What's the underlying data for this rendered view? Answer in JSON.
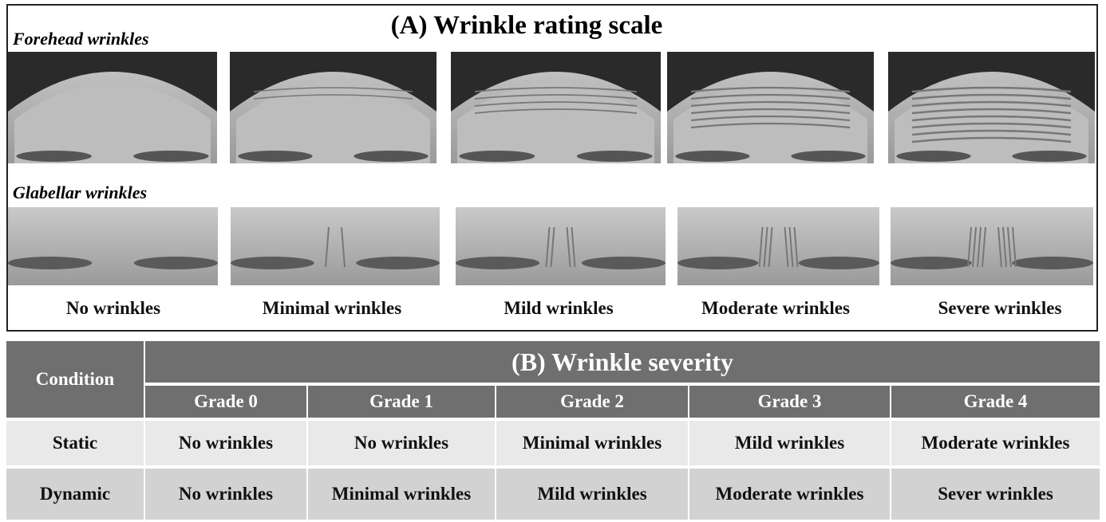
{
  "panel_a": {
    "title": "(A) Wrinkle rating scale",
    "rows": [
      "Forehead wrinkles",
      "Glabellar wrinkles"
    ],
    "grades": [
      "No wrinkles",
      "Minimal wrinkles",
      "Mild wrinkles",
      "Moderate wrinkles",
      "Severe wrinkles"
    ]
  },
  "panel_b": {
    "title": "(B) Wrinkle severity",
    "condition_header": "Condition",
    "grade_headers": [
      "Grade 0",
      "Grade 1",
      "Grade 2",
      "Grade 3",
      "Grade 4"
    ],
    "rows": [
      {
        "condition": "Static",
        "cells": [
          "No wrinkles",
          "No wrinkles",
          "Minimal wrinkles",
          "Mild wrinkles",
          "Moderate wrinkles"
        ]
      },
      {
        "condition": "Dynamic",
        "cells": [
          "No wrinkles",
          "Minimal wrinkles",
          "Mild wrinkles",
          "Moderate wrinkles",
          "Sever wrinkles"
        ]
      }
    ]
  }
}
